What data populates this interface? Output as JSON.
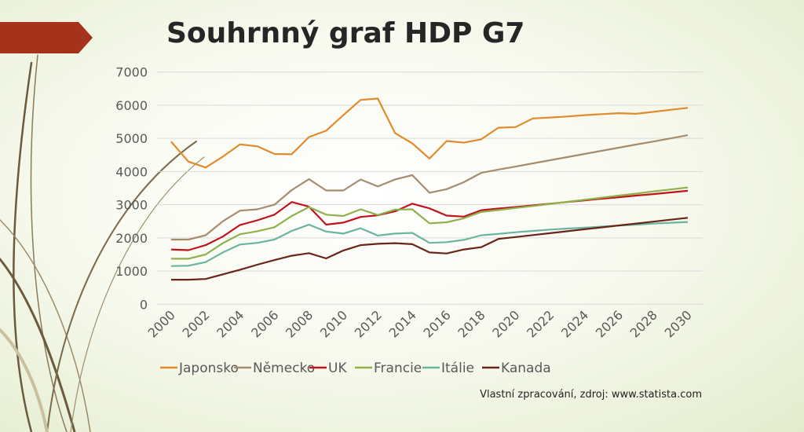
{
  "slide": {
    "title": "Souhrnný graf HDP G7",
    "source": "Vlastní zpracování, zdroj: www.statista.com",
    "banner_color": "#a5321a"
  },
  "chart_data": {
    "type": "line",
    "title": "",
    "xlabel": "",
    "ylabel": "",
    "ylim": [
      0,
      7000
    ],
    "yticks": [
      "0",
      "1000",
      "2000",
      "3000",
      "4000",
      "5000",
      "6000",
      "7000"
    ],
    "xticks": [
      "2000",
      "2002",
      "2004",
      "2006",
      "2008",
      "2010",
      "2012",
      "2014",
      "2016",
      "2018",
      "2020",
      "2022",
      "2024",
      "2026",
      "2028",
      "2030"
    ],
    "grid": "horizontal",
    "legend_position": "bottom",
    "x": [
      2000,
      2001,
      2002,
      2003,
      2004,
      2005,
      2006,
      2007,
      2008,
      2009,
      2010,
      2011,
      2012,
      2013,
      2014,
      2015,
      2016,
      2017,
      2018,
      2019,
      2020,
      2021,
      2022,
      2023,
      2024,
      2025,
      2026,
      2027,
      2028,
      2029,
      2030
    ],
    "series": [
      {
        "name": "Japonsko",
        "color": "#e38a2c",
        "values": [
          4900,
          4300,
          4120,
          4450,
          4820,
          4760,
          4530,
          4520,
          5040,
          5230,
          5700,
          6160,
          6200,
          5160,
          4850,
          4390,
          4920,
          4870,
          4970,
          5320,
          5340,
          5600,
          5630,
          5660,
          5700,
          5730,
          5760,
          5740,
          5800,
          5860,
          5920
        ]
      },
      {
        "name": "Německo",
        "color": "#a58c6c",
        "values": [
          1950,
          1950,
          2080,
          2500,
          2820,
          2860,
          3000,
          3440,
          3770,
          3430,
          3430,
          3760,
          3550,
          3760,
          3890,
          3360,
          3470,
          3680,
          3960,
          4060,
          4150,
          4245,
          4340,
          4435,
          4530,
          4625,
          4720,
          4815,
          4905,
          5000,
          5095
        ]
      },
      {
        "name": "UK",
        "color": "#c0141c",
        "values": [
          1650,
          1630,
          1780,
          2040,
          2390,
          2530,
          2700,
          3080,
          2940,
          2400,
          2460,
          2630,
          2680,
          2800,
          3030,
          2890,
          2670,
          2640,
          2835,
          2885,
          2930,
          2980,
          3030,
          3080,
          3130,
          3180,
          3225,
          3275,
          3320,
          3370,
          3420
        ]
      },
      {
        "name": "Francie",
        "color": "#8fb04a",
        "values": [
          1370,
          1370,
          1500,
          1840,
          2110,
          2200,
          2320,
          2660,
          2930,
          2700,
          2660,
          2860,
          2690,
          2850,
          2860,
          2440,
          2470,
          2590,
          2780,
          2840,
          2900,
          2960,
          3025,
          3085,
          3150,
          3210,
          3275,
          3335,
          3400,
          3460,
          3520
        ]
      },
      {
        "name": "Itálie",
        "color": "#6ab5a0",
        "values": [
          1150,
          1160,
          1270,
          1560,
          1800,
          1850,
          1950,
          2210,
          2400,
          2190,
          2130,
          2290,
          2070,
          2130,
          2150,
          1850,
          1870,
          1940,
          2080,
          2120,
          2170,
          2210,
          2250,
          2280,
          2310,
          2340,
          2370,
          2400,
          2430,
          2455,
          2480
        ]
      },
      {
        "name": "Kanada",
        "color": "#6a2418",
        "values": [
          740,
          740,
          760,
          900,
          1040,
          1190,
          1330,
          1460,
          1540,
          1380,
          1620,
          1780,
          1820,
          1840,
          1810,
          1560,
          1530,
          1650,
          1720,
          1967,
          2025,
          2083,
          2141,
          2200,
          2258,
          2316,
          2374,
          2432,
          2490,
          2548,
          2606
        ]
      }
    ]
  }
}
